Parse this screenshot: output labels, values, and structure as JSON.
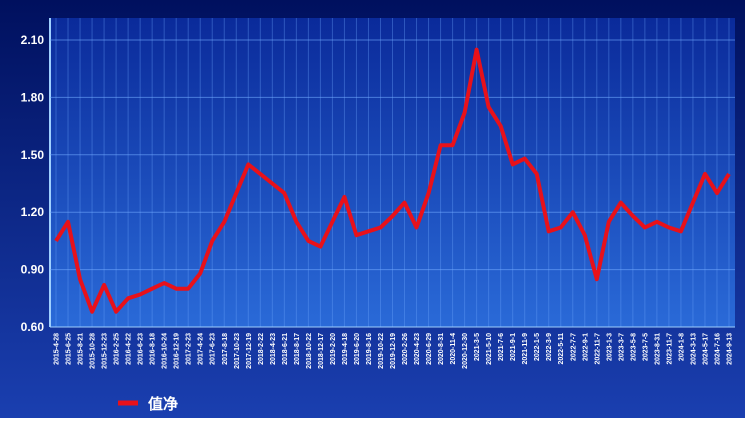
{
  "chart_data": {
    "type": "line",
    "categories": [
      "2015-4-28",
      "2015-6-25",
      "2015-8-21",
      "2015-10-28",
      "2015-12-23",
      "2016-2-25",
      "2016-4-22",
      "2016-6-23",
      "2016-8-18",
      "2016-10-24",
      "2016-12-19",
      "2017-2-23",
      "2017-4-24",
      "2017-6-23",
      "2017-8-18",
      "2017-10-23",
      "2017-12-19",
      "2018-2-22",
      "2018-4-23",
      "2018-6-21",
      "2018-8-17",
      "2018-10-22",
      "2018-12-17",
      "2019-2-20",
      "2019-4-18",
      "2019-6-20",
      "2019-8-16",
      "2019-10-22",
      "2019-12-19",
      "2020-2-26",
      "2020-4-23",
      "2020-6-29",
      "2020-8-31",
      "2020-11-4",
      "2020-12-30",
      "2021-3-5",
      "2021-5-10",
      "2021-7-6",
      "2021-9-1",
      "2021-11-9",
      "2022-1-5",
      "2022-3-9",
      "2022-5-11",
      "2022-7-7",
      "2022-9-1",
      "2022-11-7",
      "2023-1-3",
      "2023-3-7",
      "2023-5-8",
      "2023-7-5",
      "2023-8-31",
      "2023-11-7",
      "2024-1-8",
      "2024-3-13",
      "2024-5-17",
      "2024-7-16",
      "2024-9-13"
    ],
    "series": [
      {
        "name": "值净",
        "color": "#e8111a",
        "values": [
          1.05,
          1.15,
          0.85,
          0.68,
          0.82,
          0.68,
          0.75,
          0.77,
          0.8,
          0.83,
          0.8,
          0.8,
          0.88,
          1.05,
          1.15,
          1.3,
          1.45,
          1.4,
          1.35,
          1.3,
          1.15,
          1.05,
          1.02,
          1.15,
          1.28,
          1.08,
          1.1,
          1.12,
          1.18,
          1.25,
          1.12,
          1.3,
          1.55,
          1.55,
          1.72,
          2.05,
          1.75,
          1.65,
          1.45,
          1.48,
          1.4,
          1.1,
          1.12,
          1.2,
          1.08,
          0.85,
          1.15,
          1.25,
          1.18,
          1.12,
          1.15,
          1.12,
          1.1,
          1.25,
          1.4,
          1.3,
          1.4
        ]
      }
    ],
    "ylim": [
      0.6,
      2.215
    ],
    "yticks": [
      {
        "value": 0.6,
        "label": "0.60"
      },
      {
        "value": 0.9,
        "label": "0.90"
      },
      {
        "value": 1.2,
        "label": "1.20"
      },
      {
        "value": 1.5,
        "label": "1.50"
      },
      {
        "value": 1.8,
        "label": "1.80"
      },
      {
        "value": 2.1,
        "label": "2.10"
      }
    ],
    "grid": true
  }
}
